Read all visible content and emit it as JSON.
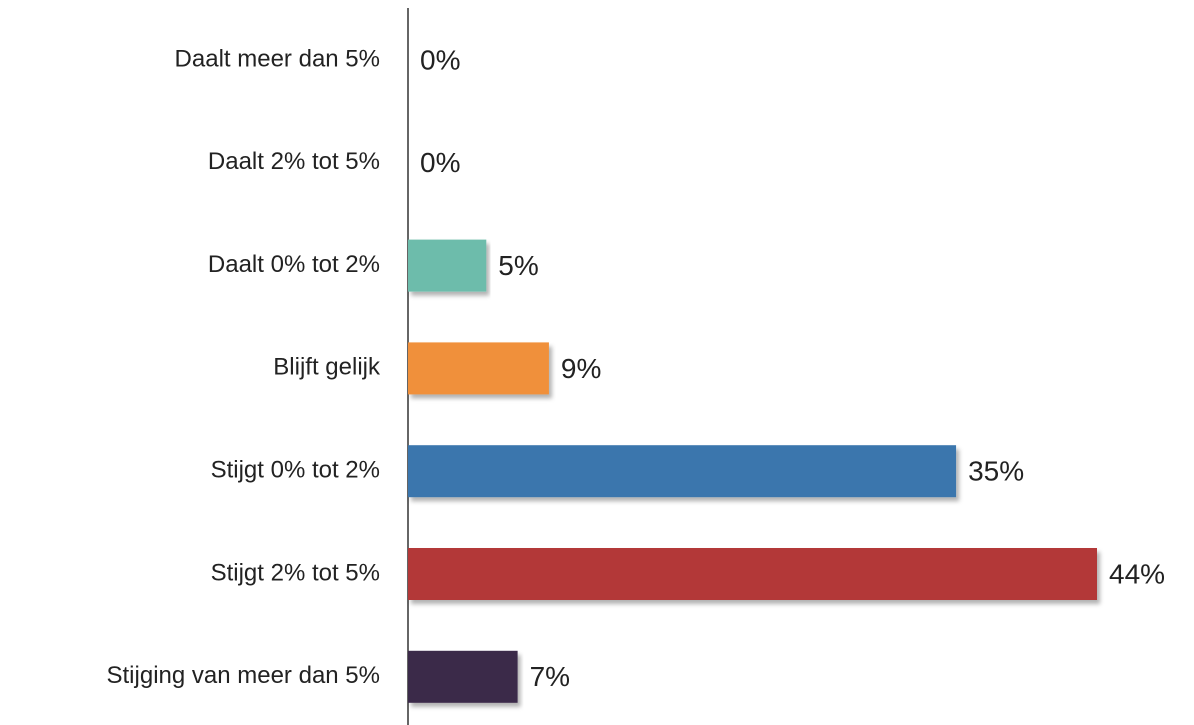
{
  "chart_data": {
    "type": "bar",
    "orientation": "horizontal",
    "categories": [
      "Daalt meer dan 5%",
      "Daalt 2% tot 5%",
      "Daalt 0% tot 2%",
      "Blijft gelijk",
      "Stijgt 0% tot 2%",
      "Stijgt 2% tot 5%",
      "Stijging van meer dan 5%"
    ],
    "values": [
      0,
      0,
      5,
      9,
      35,
      44,
      7
    ],
    "value_labels": [
      "0%",
      "0%",
      "5%",
      "9%",
      "35%",
      "44%",
      "7%"
    ],
    "colors": [
      null,
      null,
      "#6dbcab",
      "#f0903a",
      "#3b76ad",
      "#b33737",
      "#3b2a4a"
    ]
  }
}
